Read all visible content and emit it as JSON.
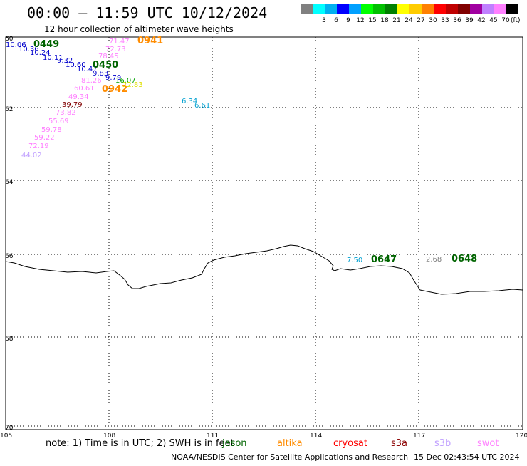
{
  "header": {
    "title": "00:00 – 11:59 UTC 10/12/2024",
    "subtitle": "12 hour collection of altimeter wave heights"
  },
  "legend": {
    "unit": "(ft)",
    "bins": [
      {
        "label": "",
        "color": "#808080"
      },
      {
        "label": "3",
        "color": "#00ffff"
      },
      {
        "label": "6",
        "color": "#00b0f0"
      },
      {
        "label": "9",
        "color": "#0000ff"
      },
      {
        "label": "12",
        "color": "#00a0ff"
      },
      {
        "label": "15",
        "color": "#00ff00"
      },
      {
        "label": "18",
        "color": "#00c000"
      },
      {
        "label": "21",
        "color": "#008000"
      },
      {
        "label": "24",
        "color": "#ffff00"
      },
      {
        "label": "27",
        "color": "#ffcc00"
      },
      {
        "label": "30",
        "color": "#ff8000"
      },
      {
        "label": "33",
        "color": "#ff0000"
      },
      {
        "label": "36",
        "color": "#c00000"
      },
      {
        "label": "39",
        "color": "#800000"
      },
      {
        "label": "42",
        "color": "#a000a0"
      },
      {
        "label": "45",
        "color": "#c080ff"
      },
      {
        "label": "70",
        "color": "#ff80ff"
      },
      {
        "label": "",
        "color": "#000000"
      }
    ]
  },
  "map": {
    "lon_ticks": [
      "105",
      "108",
      "111",
      "114",
      "117",
      "120"
    ],
    "lat_ticks": [
      "60",
      "62",
      "64",
      "66",
      "68",
      "70"
    ],
    "colors": {
      "jason": "#006400",
      "altika": "#ff8c00",
      "cryosat": "#ff0000",
      "s3a": "#8b0000",
      "s3b": "#c0a0ff",
      "swot": "#ff80ff",
      "coast": "#000000"
    },
    "observations": [
      {
        "text": "10.06",
        "color": "#0000cc"
      },
      {
        "text": "10.36",
        "color": "#0000cc"
      },
      {
        "text": "10.24",
        "color": "#0000cc"
      },
      {
        "text": "10.11",
        "color": "#0000cc"
      },
      {
        "text": "9.32",
        "color": "#0000cc"
      },
      {
        "text": "10.60",
        "color": "#0000cc"
      },
      {
        "text": "10.47",
        "color": "#0000cc"
      },
      {
        "text": "9.83",
        "color": "#0000cc"
      },
      {
        "text": "9.79",
        "color": "#0000cc"
      },
      {
        "text": "71.47",
        "color": "#ff80ff"
      },
      {
        "text": "72.73",
        "color": "#ff80ff"
      },
      {
        "text": "78.45",
        "color": "#ff80ff"
      },
      {
        "text": "16.07",
        "color": "#00a000"
      },
      {
        "text": "81.26",
        "color": "#ff80ff"
      },
      {
        "text": "22.83",
        "color": "#e0e000"
      },
      {
        "text": "60.61",
        "color": "#ff80ff"
      },
      {
        "text": "49.34",
        "color": "#ff80ff"
      },
      {
        "text": "39.79",
        "color": "#800000"
      },
      {
        "text": "73.82",
        "color": "#ff80ff"
      },
      {
        "text": "55.69",
        "color": "#ff80ff"
      },
      {
        "text": "59.78",
        "color": "#ff80ff"
      },
      {
        "text": "59.22",
        "color": "#ff80ff"
      },
      {
        "text": "72.19",
        "color": "#ff80ff"
      },
      {
        "text": "44.02",
        "color": "#c0a0ff"
      },
      {
        "text": "6.34",
        "color": "#00a0d0"
      },
      {
        "text": "6.61",
        "color": "#00a0d0"
      },
      {
        "text": "7.50",
        "color": "#00a0d0"
      },
      {
        "text": "2.68",
        "color": "#808080"
      }
    ],
    "passes": [
      {
        "text": "0449",
        "color": "#006400"
      },
      {
        "text": "0941",
        "color": "#ff8c00"
      },
      {
        "text": "0450",
        "color": "#006400"
      },
      {
        "text": "0942",
        "color": "#ff8c00"
      },
      {
        "text": "0647",
        "color": "#006400"
      },
      {
        "text": "0648",
        "color": "#006400"
      }
    ]
  },
  "footer": {
    "note": "note: 1) Time is in UTC; 2) SWH is in feet",
    "satellites": [
      "jason",
      "altika",
      "cryosat",
      "s3a",
      "s3b",
      "swot"
    ],
    "credit": "NOAA/NESDIS Center for Satellite Applications and Research",
    "timestamp": "15 Dec 02:43:54 UTC 2024"
  }
}
